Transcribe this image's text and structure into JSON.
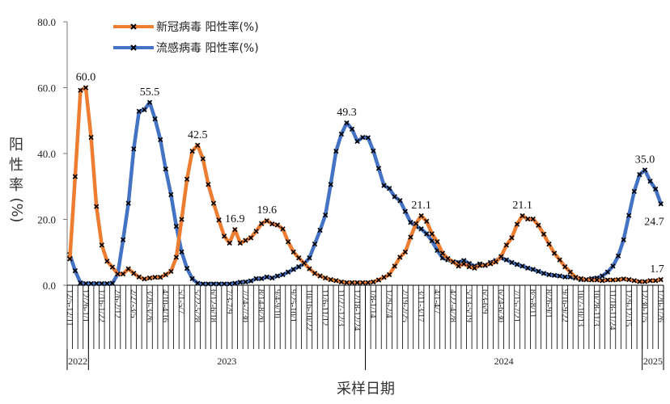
{
  "chart_data": {
    "type": "line",
    "title": "",
    "xlabel": "采样日期",
    "ylabel": [
      "阳",
      "性",
      "率",
      "(%)"
    ],
    "ylim": [
      0,
      80
    ],
    "yticks": [
      "0.0",
      "20.0",
      "40.0",
      "60.0",
      "80.0"
    ],
    "grid": false,
    "legend_position": "top-left",
    "x_tick_labels": [
      "12/5-12/11",
      "12/26-1/1",
      "1/16-1/22",
      "2/6-2/12",
      "2/27-3/5",
      "3/20-3/26",
      "4/10-4/16",
      "5/1-5/7",
      "5/22-5/28",
      "6/12-6/18",
      "7/3-7/9",
      "7/24-7/30",
      "8/14-8/20",
      "9/4-9/10",
      "9/25-10/1",
      "10/16-10/22",
      "11/6-11/12",
      "11/27-12/3",
      "12/18-12/24",
      "1/8-1/14",
      "1/29-2/4",
      "2/19-2/25",
      "3/11-3/17",
      "4/1-4/7",
      "4/22-4/28",
      "5/13-5/19",
      "6/3-6/9",
      "6/24-6/30",
      "7/15-7/21",
      "8/5-8/11",
      "8/26-9/1",
      "9/16-9/22",
      "10/7-10/13",
      "10/28-11/3",
      "11/18-11/24",
      "12/9-12/15",
      "12/30-1/5",
      "1/20-1/26"
    ],
    "years": [
      {
        "label": "2022",
        "from_week": 0,
        "to_week": 3
      },
      {
        "label": "2023",
        "from_week": 4,
        "to_week": 55
      },
      {
        "label": "2024",
        "from_week": 56,
        "to_week": 107
      },
      {
        "label": "2025",
        "from_week": 108,
        "to_week": 111
      }
    ],
    "series": [
      {
        "name": "新冠病毒 阳性率(%)",
        "color": "#ED7D31",
        "values": [
          8.0,
          33.0,
          59.2,
          60.0,
          44.9,
          23.9,
          12.2,
          7.3,
          5.5,
          3.4,
          3.4,
          5.0,
          3.6,
          2.5,
          1.9,
          2.2,
          2.4,
          2.4,
          3.2,
          4.2,
          8.5,
          20.0,
          32.2,
          40.7,
          42.5,
          38.4,
          30.6,
          24.9,
          19.8,
          14.9,
          12.8,
          16.9,
          12.8,
          13.6,
          14.4,
          16.4,
          18.7,
          19.6,
          18.6,
          18.3,
          17.1,
          13.2,
          10.1,
          8.3,
          6.7,
          5.0,
          3.6,
          2.8,
          2.2,
          1.7,
          1.4,
          1.0,
          0.8,
          0.8,
          0.8,
          0.8,
          0.8,
          1.0,
          1.6,
          2.4,
          3.2,
          5.8,
          8.5,
          10.1,
          14.6,
          18.7,
          21.1,
          19.4,
          15.6,
          13.2,
          9.7,
          8.1,
          7.1,
          5.8,
          6.5,
          5.6,
          5.2,
          6.0,
          6.1,
          6.5,
          7.1,
          8.7,
          12.2,
          14.4,
          18.5,
          21.1,
          20.1,
          20.1,
          18.2,
          15.5,
          12.5,
          9.7,
          7.7,
          5.6,
          4.0,
          2.4,
          2.0,
          1.7,
          1.6,
          1.6,
          1.4,
          1.6,
          1.6,
          1.7,
          1.9,
          1.7,
          1.4,
          1.1,
          1.1,
          1.4,
          1.4,
          1.7
        ],
        "data_labels": [
          {
            "week": 3,
            "text": "60.0",
            "pos": "above"
          },
          {
            "week": 24,
            "text": "42.5",
            "pos": "above"
          },
          {
            "week": 31,
            "text": "16.9",
            "pos": "above"
          },
          {
            "week": 37,
            "text": "19.6",
            "pos": "above"
          },
          {
            "week": 66,
            "text": "21.1",
            "pos": "above"
          },
          {
            "week": 85,
            "text": "21.1",
            "pos": "above"
          },
          {
            "week": 111,
            "text": "1.7",
            "pos": "above"
          }
        ]
      },
      {
        "name": "流感病毒 阳性率(%)",
        "color": "#4472C4",
        "values": [
          9.3,
          4.4,
          0.7,
          0.5,
          0.5,
          0.5,
          0.5,
          0.5,
          0.6,
          3.4,
          13.8,
          24.9,
          41.4,
          52.8,
          53.3,
          55.5,
          50.5,
          44.2,
          35.3,
          27.5,
          17.9,
          10.1,
          5.1,
          2.0,
          0.6,
          0.4,
          0.4,
          0.4,
          0.4,
          0.4,
          0.4,
          0.6,
          0.9,
          1.0,
          1.3,
          2.0,
          2.0,
          2.5,
          2.2,
          2.8,
          3.2,
          4.0,
          4.8,
          5.6,
          6.5,
          8.3,
          12.5,
          16.7,
          21.3,
          30.6,
          40.7,
          45.9,
          49.3,
          47.4,
          43.7,
          44.9,
          44.8,
          40.8,
          35.5,
          30.3,
          29.4,
          26.9,
          25.7,
          22.4,
          19.1,
          17.9,
          17.1,
          15.6,
          13.5,
          10.6,
          8.3,
          7.7,
          7.1,
          6.9,
          7.5,
          6.6,
          5.8,
          6.5,
          6.0,
          6.9,
          7.5,
          8.3,
          7.7,
          6.9,
          6.3,
          5.8,
          5.2,
          4.8,
          4.2,
          3.6,
          3.2,
          3.0,
          2.8,
          2.5,
          2.5,
          2.2,
          1.7,
          1.7,
          2.0,
          2.2,
          2.8,
          4.0,
          5.8,
          8.9,
          13.8,
          21.2,
          28.5,
          33.6,
          35.0,
          31.6,
          29.2,
          24.7
        ],
        "data_labels": [
          {
            "week": 15,
            "text": "55.5",
            "pos": "above"
          },
          {
            "week": 52,
            "text": "49.3",
            "pos": "above"
          },
          {
            "week": 108,
            "text": "35.0",
            "pos": "above"
          },
          {
            "week": 111,
            "text": "24.7",
            "pos": "below"
          }
        ]
      }
    ]
  }
}
